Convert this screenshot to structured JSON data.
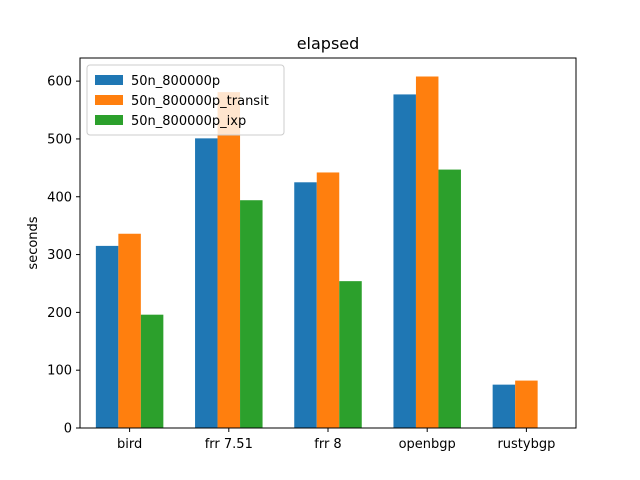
{
  "chart_data": {
    "type": "bar",
    "title": "elapsed",
    "xlabel": "",
    "ylabel": "seconds",
    "categories": [
      "bird",
      "frr 7.51",
      "frr 8",
      "openbgp",
      "rustybgp"
    ],
    "series": [
      {
        "name": "50n_800000p",
        "color": "#1f77b4",
        "values": [
          315,
          501,
          425,
          577,
          75
        ]
      },
      {
        "name": "50n_800000p_transit",
        "color": "#ff7f0e",
        "values": [
          336,
          581,
          442,
          608,
          82
        ]
      },
      {
        "name": "50n_800000p_ixp",
        "color": "#2ca02c",
        "values": [
          196,
          394,
          254,
          447,
          null
        ]
      }
    ],
    "ylim": [
      0,
      640
    ],
    "yticks": [
      0,
      100,
      200,
      300,
      400,
      500,
      600
    ],
    "grid": false,
    "legend_placement": "top-left"
  }
}
